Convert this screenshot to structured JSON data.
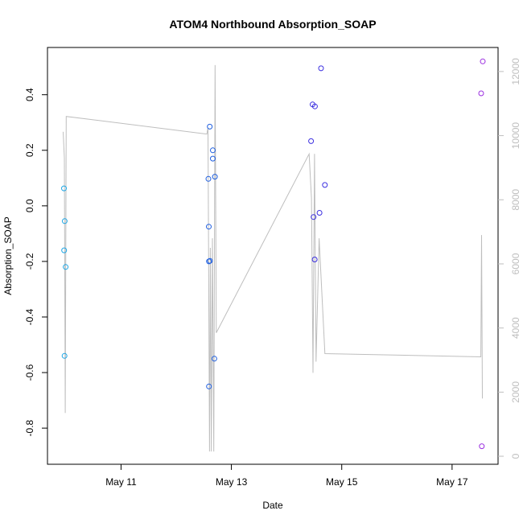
{
  "chart_data": {
    "type": "scatter",
    "title": "ATOM4 Northbound Absorption_SOAP",
    "xlabel": "Date",
    "ylabel": "Absorption_SOAP",
    "x_unit": "day",
    "x_ticks": [
      {
        "value": "2024-05-11",
        "label": "May 11"
      },
      {
        "value": "2024-05-13",
        "label": "May 13"
      },
      {
        "value": "2024-05-15",
        "label": "May 15"
      },
      {
        "value": "2024-05-17",
        "label": "May 17"
      }
    ],
    "xlim": [
      "2024-05-09T16:00",
      "2024-05-17T20:00"
    ],
    "ylim": [
      -0.93,
      0.57
    ],
    "y_ticks": [
      -0.8,
      -0.6,
      -0.4,
      -0.2,
      0.0,
      0.2,
      0.4
    ],
    "y_tick_labels": [
      "-0.8",
      "-0.6",
      "-0.4",
      "-0.2",
      "0.0",
      "0.2",
      "0.4"
    ],
    "y2lim": [
      -250,
      12750
    ],
    "y2_ticks": [
      0,
      2000,
      4000,
      6000,
      8000,
      10000,
      12000
    ],
    "y2_tick_labels": [
      "0",
      "2000",
      "4000",
      "6000",
      "8000",
      "10000",
      "12000"
    ],
    "grid": false,
    "legend": "none",
    "series": [
      {
        "color": "#1ea7e6",
        "points": [
          {
            "x": "2024-05-09T23:10",
            "y": 0.063
          },
          {
            "x": "2024-05-09T23:30",
            "y": -0.055
          },
          {
            "x": "2024-05-09T23:15",
            "y": -0.16
          },
          {
            "x": "2024-05-09T23:55",
            "y": -0.22
          },
          {
            "x": "2024-05-09T23:25",
            "y": -0.54
          }
        ]
      },
      {
        "color": "#1f5fe0",
        "points": [
          {
            "x": "2024-05-12T14:00",
            "y": 0.097
          },
          {
            "x": "2024-05-12T14:10",
            "y": -0.075
          },
          {
            "x": "2024-05-12T14:15",
            "y": -0.2
          },
          {
            "x": "2024-05-12T14:40",
            "y": -0.198
          },
          {
            "x": "2024-05-12T14:35",
            "y": 0.285
          },
          {
            "x": "2024-05-12T15:55",
            "y": 0.2
          },
          {
            "x": "2024-05-12T15:55",
            "y": 0.17
          },
          {
            "x": "2024-05-12T16:50",
            "y": 0.105
          },
          {
            "x": "2024-05-12T16:35",
            "y": -0.55
          },
          {
            "x": "2024-05-12T14:15",
            "y": -0.65
          }
        ]
      },
      {
        "color": "#3b2fe0",
        "points": [
          {
            "x": "2024-05-14T10:40",
            "y": 0.233
          },
          {
            "x": "2024-05-14T11:20",
            "y": 0.365
          },
          {
            "x": "2024-05-14T12:20",
            "y": 0.358
          },
          {
            "x": "2024-05-14T15:00",
            "y": 0.495
          },
          {
            "x": "2024-05-14T11:45",
            "y": -0.04
          },
          {
            "x": "2024-05-14T14:20",
            "y": -0.025
          },
          {
            "x": "2024-05-14T16:40",
            "y": 0.075
          },
          {
            "x": "2024-05-14T12:15",
            "y": -0.193
          }
        ]
      },
      {
        "color": "#9b2fe0",
        "points": [
          {
            "x": "2024-05-17T12:40",
            "y": 0.405
          },
          {
            "x": "2024-05-17T13:20",
            "y": 0.52
          },
          {
            "x": "2024-05-17T12:55",
            "y": -0.865
          }
        ]
      }
    ],
    "secondary_line": {
      "color": "#bebebe",
      "axis": "right",
      "points": [
        {
          "x": "2024-05-09T22:50",
          "y": 10120
        },
        {
          "x": "2024-05-09T23:20",
          "y": 9300
        },
        {
          "x": "2024-05-09T23:45",
          "y": 1350
        },
        {
          "x": "2024-05-10T00:10",
          "y": 10600
        },
        {
          "x": "2024-05-12T13:20",
          "y": 10050
        },
        {
          "x": "2024-05-12T13:50",
          "y": 10250
        },
        {
          "x": "2024-05-12T14:30",
          "y": 150
        },
        {
          "x": "2024-05-12T14:50",
          "y": 6500
        },
        {
          "x": "2024-05-12T15:15",
          "y": 150
        },
        {
          "x": "2024-05-12T15:45",
          "y": 6800
        },
        {
          "x": "2024-05-12T16:20",
          "y": 150
        },
        {
          "x": "2024-05-12T16:55",
          "y": 12200
        },
        {
          "x": "2024-05-12T17:25",
          "y": 3850
        },
        {
          "x": "2024-05-14T09:50",
          "y": 9430
        },
        {
          "x": "2024-05-14T10:50",
          "y": 8050
        },
        {
          "x": "2024-05-14T11:30",
          "y": 2600
        },
        {
          "x": "2024-05-14T12:10",
          "y": 9430
        },
        {
          "x": "2024-05-14T12:50",
          "y": 2950
        },
        {
          "x": "2024-05-14T14:10",
          "y": 6800
        },
        {
          "x": "2024-05-14T16:40",
          "y": 3200
        },
        {
          "x": "2024-05-17T12:30",
          "y": 3100
        },
        {
          "x": "2024-05-17T12:50",
          "y": 6900
        },
        {
          "x": "2024-05-17T13:10",
          "y": 1800
        }
      ]
    }
  }
}
